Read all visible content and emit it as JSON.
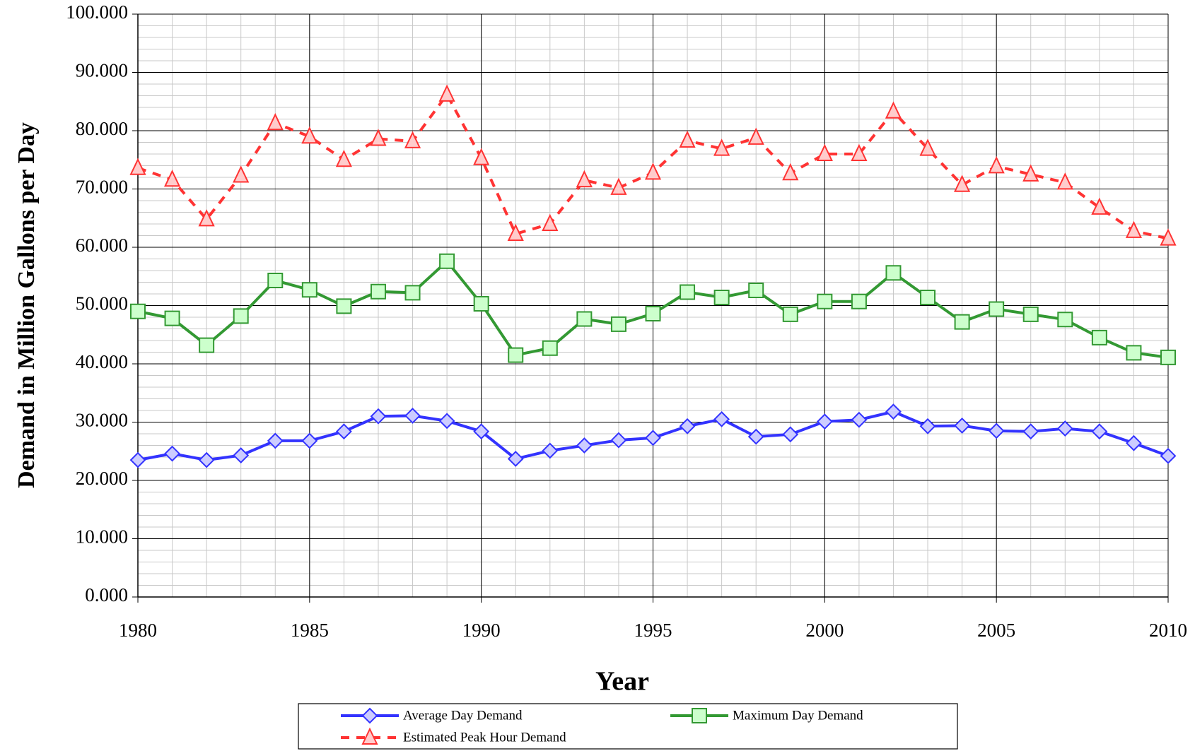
{
  "chart_data": {
    "type": "line",
    "xlabel": "Year",
    "ylabel": "Demand in Million Gallons per Day",
    "x": [
      1980,
      1981,
      1982,
      1983,
      1984,
      1985,
      1986,
      1987,
      1988,
      1989,
      1990,
      1991,
      1992,
      1993,
      1994,
      1995,
      1996,
      1997,
      1998,
      1999,
      2000,
      2001,
      2002,
      2003,
      2004,
      2005,
      2006,
      2007,
      2008,
      2009,
      2010
    ],
    "xlim": [
      1980,
      2010
    ],
    "xticks": [
      1980,
      1985,
      1990,
      1995,
      2000,
      2005,
      2010
    ],
    "ylim": [
      0,
      100
    ],
    "yticks": [
      {
        "value": 0,
        "label": "0.000"
      },
      {
        "value": 10,
        "label": "10.000"
      },
      {
        "value": 20,
        "label": "20.000"
      },
      {
        "value": 30,
        "label": "30.000"
      },
      {
        "value": 40,
        "label": "40.000"
      },
      {
        "value": 50,
        "label": "50.000"
      },
      {
        "value": 60,
        "label": "60.000"
      },
      {
        "value": 70,
        "label": "70.000"
      },
      {
        "value": 80,
        "label": "80.000"
      },
      {
        "value": 90,
        "label": "90.000"
      },
      {
        "value": 100,
        "label": "100.000"
      }
    ],
    "grid": true,
    "minor_grid": true,
    "legend": "bottom",
    "series": [
      {
        "name": "Average Day Demand",
        "color": "#3333ff",
        "marker": "diamond",
        "marker_fill": "#ccccff",
        "dashed": false,
        "values": [
          23.5,
          24.6,
          23.5,
          24.3,
          26.8,
          26.8,
          28.4,
          31.0,
          31.1,
          30.2,
          28.4,
          23.7,
          25.1,
          26.0,
          26.9,
          27.3,
          29.3,
          30.5,
          27.5,
          27.9,
          30.1,
          30.4,
          31.8,
          29.3,
          29.4,
          28.5,
          28.4,
          28.9,
          28.4,
          26.4,
          24.2
        ]
      },
      {
        "name": "Maximum Day Demand",
        "color": "#339933",
        "marker": "square",
        "marker_fill": "#ccffcc",
        "dashed": false,
        "values": [
          49.0,
          47.8,
          43.2,
          48.2,
          54.3,
          52.7,
          49.9,
          52.4,
          52.2,
          57.6,
          50.3,
          41.5,
          42.7,
          47.7,
          46.8,
          48.6,
          52.3,
          51.4,
          52.6,
          48.5,
          50.7,
          50.7,
          55.6,
          51.4,
          47.2,
          49.4,
          48.5,
          47.6,
          44.5,
          41.9,
          41.1
        ]
      },
      {
        "name": "Estimated Peak Hour Demand",
        "color": "#ff3333",
        "marker": "triangle",
        "marker_fill": "#ffcccc",
        "dashed": true,
        "values": [
          73.6,
          71.6,
          64.8,
          72.3,
          81.3,
          79.0,
          75.0,
          78.6,
          78.2,
          86.2,
          75.3,
          62.3,
          64.0,
          71.5,
          70.2,
          72.8,
          78.3,
          76.9,
          78.8,
          72.7,
          76.0,
          76.0,
          83.3,
          76.9,
          70.7,
          73.9,
          72.5,
          71.1,
          66.8,
          62.8,
          61.5
        ]
      }
    ]
  }
}
